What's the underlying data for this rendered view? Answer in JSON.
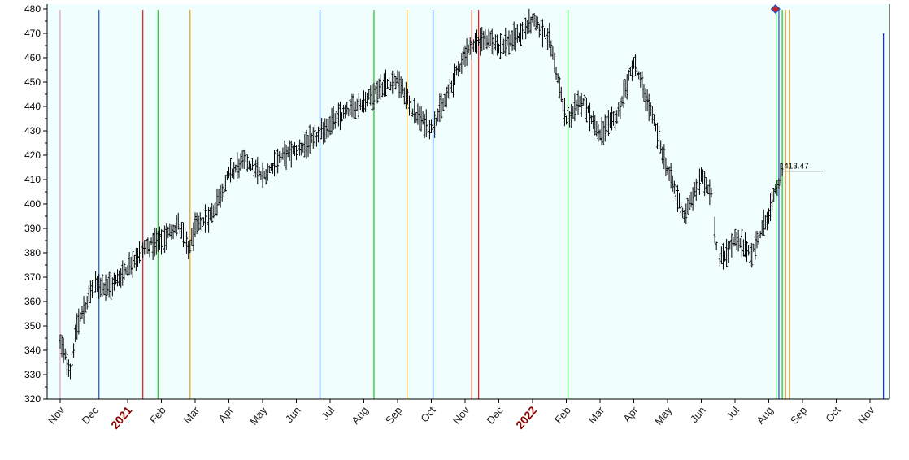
{
  "chart_data": {
    "type": "bar",
    "subtype": "ohlc-price-bars",
    "ylim": [
      320,
      482
    ],
    "yticks": [
      320,
      330,
      340,
      350,
      360,
      370,
      380,
      390,
      400,
      410,
      420,
      430,
      440,
      450,
      460,
      470,
      480
    ],
    "x_tick_labels": [
      {
        "label": "Nov"
      },
      {
        "label": "Dec"
      },
      {
        "label": "2021",
        "emphasis": true
      },
      {
        "label": "Feb"
      },
      {
        "label": "Mar"
      },
      {
        "label": "Apr"
      },
      {
        "label": "May"
      },
      {
        "label": "Jun"
      },
      {
        "label": "Jul"
      },
      {
        "label": "Aug"
      },
      {
        "label": "Sep"
      },
      {
        "label": "Oct"
      },
      {
        "label": "Nov"
      },
      {
        "label": "Dec"
      },
      {
        "label": "2022",
        "emphasis": true
      },
      {
        "label": "Feb"
      },
      {
        "label": "Mar"
      },
      {
        "label": "Apr"
      },
      {
        "label": "May"
      },
      {
        "label": "Jun"
      },
      {
        "label": "Jul"
      },
      {
        "label": "Aug"
      },
      {
        "label": "Sep"
      },
      {
        "label": "Oct"
      },
      {
        "label": "Nov"
      }
    ],
    "price_path": [
      [
        0,
        343
      ],
      [
        0.3,
        332
      ],
      [
        0.5,
        350
      ],
      [
        1,
        367
      ],
      [
        1.5,
        366
      ],
      [
        2,
        374
      ],
      [
        2.5,
        382
      ],
      [
        3,
        385
      ],
      [
        3.5,
        392
      ],
      [
        3.8,
        381
      ],
      [
        4,
        390
      ],
      [
        4.5,
        396
      ],
      [
        5,
        412
      ],
      [
        5.5,
        418
      ],
      [
        6,
        411
      ],
      [
        6.5,
        419
      ],
      [
        7,
        422
      ],
      [
        7.5,
        426
      ],
      [
        8,
        433
      ],
      [
        8.5,
        438
      ],
      [
        9,
        442
      ],
      [
        9.5,
        448
      ],
      [
        10,
        451
      ],
      [
        10.5,
        437
      ],
      [
        11,
        431
      ],
      [
        11.5,
        445
      ],
      [
        12,
        462
      ],
      [
        12.5,
        468
      ],
      [
        13,
        465
      ],
      [
        13.5,
        468
      ],
      [
        14,
        475
      ],
      [
        14.5,
        468
      ],
      [
        15,
        434
      ],
      [
        15.5,
        443
      ],
      [
        16,
        428
      ],
      [
        16.5,
        436
      ],
      [
        17,
        458
      ],
      [
        17.5,
        438
      ],
      [
        18,
        414
      ],
      [
        18.5,
        395
      ],
      [
        19,
        411
      ],
      [
        19.3,
        405
      ],
      [
        19.5,
        376
      ],
      [
        20,
        385
      ],
      [
        20.5,
        380
      ],
      [
        21,
        396
      ],
      [
        21.4,
        413.47
      ]
    ],
    "last_value_label": "413.47",
    "last_value": 413.47,
    "last_value_x": 21.4,
    "marker": {
      "x": 21.2,
      "color": "#cc2222",
      "outline": "#2a4ab8"
    },
    "vertical_lines": [
      {
        "x": 0,
        "color": "#e8a2c6"
      },
      {
        "x": 1.15,
        "color": "#2a5ec8"
      },
      {
        "x": 2.45,
        "color": "#d42a2a"
      },
      {
        "x": 2.9,
        "color": "#2ec72e"
      },
      {
        "x": 3.85,
        "color": "#f0a020"
      },
      {
        "x": 7.7,
        "color": "#2a5ec8"
      },
      {
        "x": 9.3,
        "color": "#2ec72e"
      },
      {
        "x": 10.28,
        "color": "#f0a020"
      },
      {
        "x": 11.05,
        "color": "#2a5ec8"
      },
      {
        "x": 12.2,
        "color": "#d42a2a"
      },
      {
        "x": 12.4,
        "color": "#d42a2a"
      },
      {
        "x": 15.05,
        "color": "#2ec72e"
      },
      {
        "x": 21.22,
        "color": "#2ec72e"
      },
      {
        "x": 21.3,
        "color": "#2a5ec8"
      },
      {
        "x": 21.4,
        "color": "#2ec72e"
      },
      {
        "x": 21.5,
        "color": "#f0a020"
      },
      {
        "x": 21.62,
        "color": "#f0a020"
      },
      {
        "x": 24.4,
        "color": "#2a2ee0",
        "top": 470
      }
    ],
    "colors": {
      "plot_background": "#f0fffe",
      "bars": "#000000",
      "axis": "#000000",
      "emphasis_label": "#8b0000"
    },
    "grid": false,
    "legend": "none"
  }
}
